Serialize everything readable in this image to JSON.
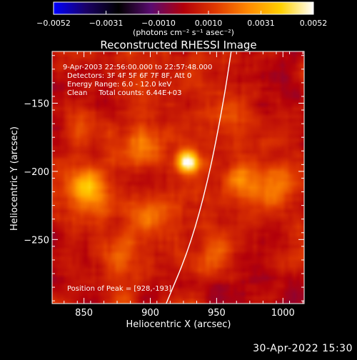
{
  "chart_data": {
    "type": "heatmap",
    "title": "Reconstructed RHESSI Image",
    "xlabel": "Heliocentric X (arcsec)",
    "ylabel": "Heliocentric Y (arcsec)",
    "xlim": [
      826,
      1016
    ],
    "ylim": [
      -297,
      -112
    ],
    "x_ticks": [
      850,
      900,
      950,
      1000
    ],
    "y_ticks": [
      -150,
      -200,
      -250
    ],
    "x_tick_labels": [
      "850",
      "900",
      "950",
      "1000"
    ],
    "y_tick_labels": [
      "−150",
      "−200",
      "−250"
    ],
    "colorbar": {
      "range": [
        -0.0052,
        0.0052
      ],
      "ticks": [
        -0.0052,
        -0.0031,
        -0.001,
        0.001,
        0.0031,
        0.0052
      ],
      "tick_labels": [
        "−0.0052",
        "−0.0031",
        "−0.0010",
        "0.0010",
        "0.0031",
        "0.0052"
      ],
      "units": "(photons cm⁻² s⁻¹ asec⁻²)",
      "colors": [
        "#0000ff",
        "#1a0066",
        "#000000",
        "#5a0b70",
        "#b3000a",
        "#e03a00",
        "#ff8a00",
        "#ffd000",
        "#ffffff"
      ]
    },
    "annotations": [
      "9-Apr-2003 22:56:00.000 to 22:57:48.000",
      "Detectors: 3F 4F 5F 6F 7F 8F, Att 0",
      "Energy Range: 6.0 - 12.0 keV",
      "Clean     Total counts: 6.44E+03"
    ],
    "peak_label": "Position of Peak = [928,-193]",
    "peak": {
      "x": 928,
      "y": -193,
      "value": 0.0052
    },
    "secondary_sources": [
      {
        "x": 852,
        "y": -212,
        "value": 0.0026
      },
      {
        "x": 893,
        "y": -180,
        "value": 0.0018
      },
      {
        "x": 968,
        "y": -208,
        "value": 0.0016
      },
      {
        "x": 948,
        "y": -262,
        "value": 0.0015
      },
      {
        "x": 995,
        "y": -210,
        "value": 0.0014
      },
      {
        "x": 960,
        "y": -158,
        "value": 0.0013
      },
      {
        "x": 876,
        "y": -262,
        "value": 0.0012
      },
      {
        "x": 900,
        "y": -232,
        "value": 0.0013
      },
      {
        "x": 848,
        "y": -168,
        "value": 0.001
      }
    ],
    "negative_regions": [
      {
        "x": 836,
        "y": -150,
        "value": -0.0006
      },
      {
        "x": 995,
        "y": -130,
        "value": -0.0007
      },
      {
        "x": 840,
        "y": -280,
        "value": -0.0005
      },
      {
        "x": 995,
        "y": -285,
        "value": -0.0006
      },
      {
        "x": 938,
        "y": -290,
        "value": -0.0004
      }
    ],
    "limb_curve": [
      [
        912,
        -297
      ],
      [
        930,
        -255
      ],
      [
        944,
        -205
      ],
      [
        955,
        -150
      ],
      [
        961,
        -112
      ]
    ]
  },
  "footer": {
    "timestamp": "30-Apr-2022 15:30"
  }
}
